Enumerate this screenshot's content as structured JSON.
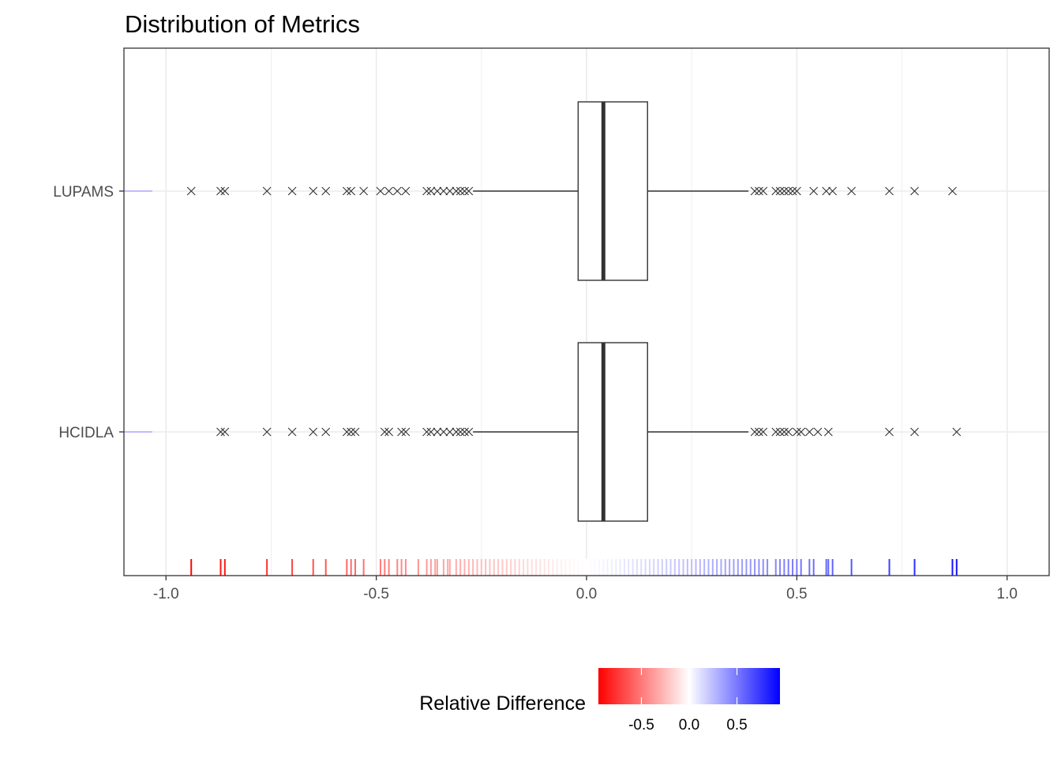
{
  "chart_data": {
    "type": "boxplot",
    "title": "Distribution of Metrics",
    "xlabel": "",
    "ylabel": "",
    "xlim": [
      -1.1,
      1.1
    ],
    "x_ticks": [
      -1.0,
      -0.5,
      0.0,
      0.5,
      1.0
    ],
    "x_tick_labels": [
      "-1.0",
      "-0.5",
      "0.0",
      "0.5",
      "1.0"
    ],
    "grid": true,
    "categories": [
      "LUPAMS",
      "HCIDLA"
    ],
    "boxes": [
      {
        "category": "LUPAMS",
        "q1": -0.02,
        "median": 0.04,
        "q3": 0.145,
        "whisker_low": -0.27,
        "whisker_high": 0.385,
        "outliers": [
          -0.94,
          -0.87,
          -0.86,
          -0.76,
          -0.7,
          -0.65,
          -0.62,
          -0.57,
          -0.56,
          -0.53,
          -0.49,
          -0.47,
          -0.45,
          -0.43,
          -0.38,
          -0.37,
          -0.355,
          -0.34,
          -0.325,
          -0.31,
          -0.3,
          -0.29,
          -0.28,
          0.4,
          0.41,
          0.42,
          0.45,
          0.46,
          0.47,
          0.48,
          0.49,
          0.5,
          0.54,
          0.57,
          0.585,
          0.63,
          0.72,
          0.78,
          0.87
        ]
      },
      {
        "category": "HCIDLA",
        "q1": -0.02,
        "median": 0.04,
        "q3": 0.145,
        "whisker_low": -0.27,
        "whisker_high": 0.385,
        "outliers": [
          -0.87,
          -0.86,
          -0.76,
          -0.7,
          -0.65,
          -0.62,
          -0.57,
          -0.56,
          -0.55,
          -0.48,
          -0.47,
          -0.44,
          -0.43,
          -0.38,
          -0.37,
          -0.355,
          -0.34,
          -0.325,
          -0.31,
          -0.3,
          -0.29,
          -0.28,
          0.4,
          0.41,
          0.42,
          0.45,
          0.46,
          0.47,
          0.48,
          0.5,
          0.51,
          0.53,
          0.55,
          0.575,
          0.72,
          0.78,
          0.88
        ]
      }
    ],
    "rug": {
      "values": [
        -0.94,
        -0.87,
        -0.86,
        -0.76,
        -0.7,
        -0.65,
        -0.62,
        -0.57,
        -0.56,
        -0.55,
        -0.53,
        -0.49,
        -0.48,
        -0.47,
        -0.45,
        -0.44,
        -0.43,
        -0.4,
        -0.38,
        -0.37,
        -0.36,
        -0.355,
        -0.34,
        -0.33,
        -0.325,
        -0.31,
        -0.3,
        -0.29,
        -0.28,
        -0.27,
        -0.26,
        -0.25,
        -0.24,
        -0.23,
        -0.22,
        -0.21,
        -0.2,
        -0.19,
        -0.18,
        -0.17,
        -0.16,
        -0.15,
        -0.14,
        -0.13,
        -0.12,
        -0.11,
        -0.1,
        -0.09,
        -0.08,
        -0.07,
        -0.06,
        -0.05,
        -0.04,
        -0.03,
        -0.02,
        -0.01,
        0.0,
        0.01,
        0.02,
        0.03,
        0.04,
        0.05,
        0.06,
        0.07,
        0.08,
        0.09,
        0.1,
        0.11,
        0.12,
        0.13,
        0.14,
        0.15,
        0.16,
        0.17,
        0.18,
        0.19,
        0.2,
        0.21,
        0.22,
        0.23,
        0.24,
        0.25,
        0.26,
        0.27,
        0.28,
        0.29,
        0.3,
        0.31,
        0.32,
        0.33,
        0.34,
        0.35,
        0.36,
        0.37,
        0.38,
        0.39,
        0.4,
        0.41,
        0.42,
        0.43,
        0.45,
        0.46,
        0.47,
        0.48,
        0.49,
        0.5,
        0.51,
        0.53,
        0.54,
        0.57,
        0.575,
        0.585,
        0.63,
        0.72,
        0.78,
        0.87,
        0.88
      ],
      "left_edge_ticks": true
    },
    "legend": {
      "title": "Relative Difference",
      "position": "bottom",
      "type": "colorbar",
      "limits": [
        -0.95,
        0.95
      ],
      "ticks": [
        -0.5,
        0.0,
        0.5
      ],
      "tick_labels": [
        "-0.5",
        "0.0",
        "0.5"
      ],
      "low_color": "#ff0000",
      "mid_color": "#ffffff",
      "high_color": "#0000ff"
    },
    "colors": {
      "panel_border": "#333333",
      "grid": "#ebebeb",
      "box_line": "#333333",
      "outlier": "#333333"
    }
  }
}
